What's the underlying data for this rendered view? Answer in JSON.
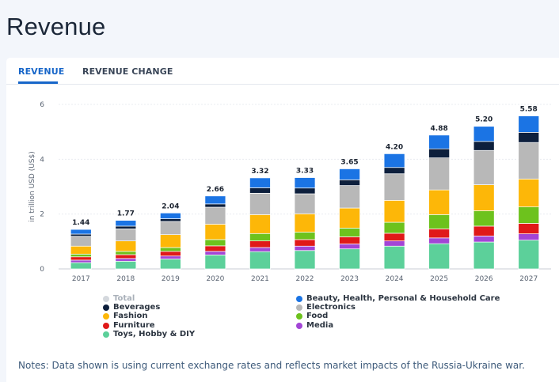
{
  "page": {
    "title": "Revenue"
  },
  "tabs": [
    {
      "label": "REVENUE",
      "active": true
    },
    {
      "label": "REVENUE CHANGE",
      "active": false
    }
  ],
  "notes": "Notes: Data shown is using current exchange rates and reflects market impacts of the Russia-Ukraine war.",
  "chart_data": {
    "type": "bar",
    "stacked": true,
    "ylabel": "in trillion USD (US$)",
    "ylim": [
      0,
      6
    ],
    "yticks": [
      "0",
      "2",
      "4",
      "6"
    ],
    "grid": true,
    "legend_position": "bottom",
    "categories": [
      "2017",
      "2018",
      "2019",
      "2020",
      "2021",
      "2022",
      "2023",
      "2024",
      "2025",
      "2026",
      "2027"
    ],
    "totals": [
      "1.44",
      "1.77",
      "2.04",
      "2.66",
      "3.32",
      "3.33",
      "3.65",
      "4.20",
      "4.88",
      "5.20",
      "5.58"
    ],
    "total_series_name": "Total",
    "series": [
      {
        "name": "Toys, Hobby & DIY",
        "color": "#5cd09a",
        "values": [
          0.23,
          0.28,
          0.36,
          0.51,
          0.63,
          0.67,
          0.73,
          0.83,
          0.92,
          0.98,
          1.05
        ]
      },
      {
        "name": "Media",
        "color": "#a345d6",
        "values": [
          0.09,
          0.1,
          0.11,
          0.13,
          0.15,
          0.16,
          0.18,
          0.19,
          0.21,
          0.22,
          0.23
        ]
      },
      {
        "name": "Furniture",
        "color": "#e01919",
        "values": [
          0.12,
          0.14,
          0.17,
          0.2,
          0.24,
          0.24,
          0.26,
          0.28,
          0.33,
          0.36,
          0.38
        ]
      },
      {
        "name": "Food",
        "color": "#6dc21d",
        "values": [
          0.1,
          0.12,
          0.14,
          0.23,
          0.27,
          0.27,
          0.32,
          0.4,
          0.52,
          0.56,
          0.6
        ]
      },
      {
        "name": "Fashion",
        "color": "#fdb708",
        "values": [
          0.29,
          0.38,
          0.47,
          0.56,
          0.69,
          0.67,
          0.73,
          0.8,
          0.9,
          0.95,
          1.02
        ]
      },
      {
        "name": "Electronics",
        "color": "#b8b8b8",
        "values": [
          0.36,
          0.44,
          0.48,
          0.62,
          0.78,
          0.73,
          0.82,
          0.97,
          1.17,
          1.25,
          1.33
        ]
      },
      {
        "name": "Beverages",
        "color": "#0d1f3c",
        "values": [
          0.08,
          0.1,
          0.1,
          0.12,
          0.2,
          0.21,
          0.21,
          0.23,
          0.33,
          0.33,
          0.37
        ]
      },
      {
        "name": "Beauty, Health, Personal & Household Care",
        "color": "#1b74e4",
        "values": [
          0.17,
          0.21,
          0.21,
          0.29,
          0.36,
          0.38,
          0.4,
          0.5,
          0.5,
          0.55,
          0.6
        ]
      }
    ],
    "legend_order": [
      "Total",
      "Beauty, Health, Personal & Household Care",
      "Beverages",
      "Electronics",
      "Fashion",
      "Food",
      "Furniture",
      "Media",
      "Toys, Hobby & DIY"
    ]
  },
  "legend_colors": {
    "Total": "#d4d8dd"
  }
}
